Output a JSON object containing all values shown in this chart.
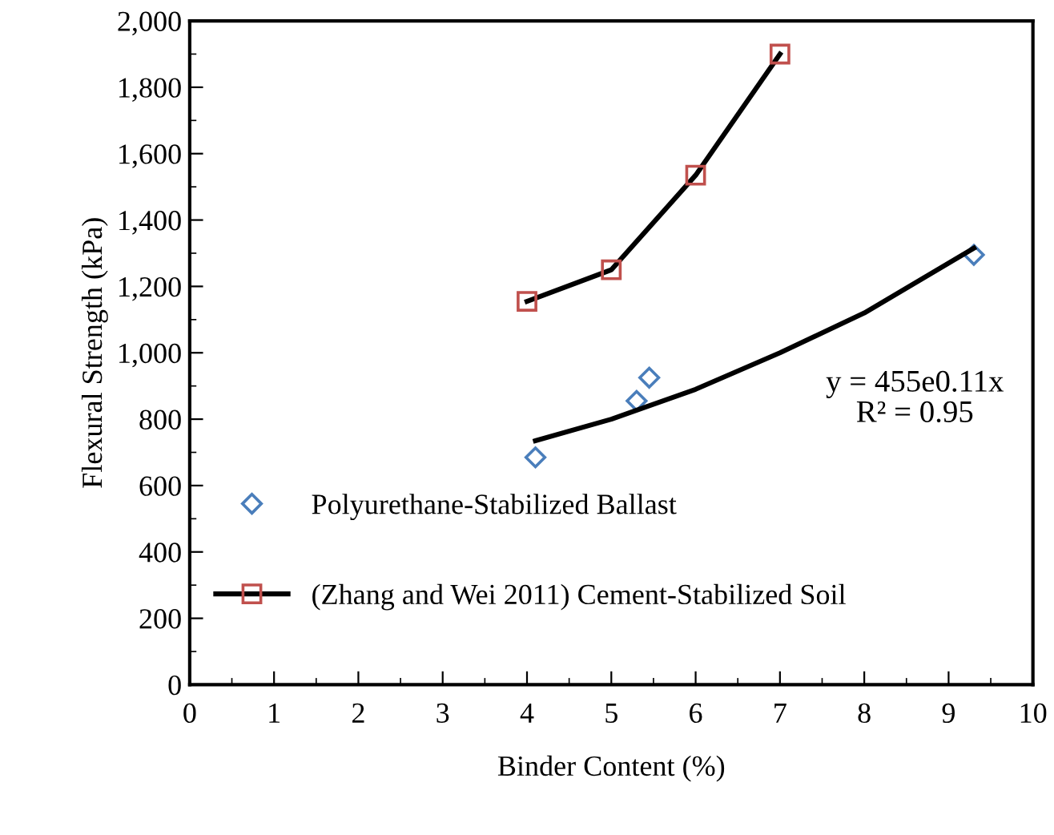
{
  "chart_data": {
    "type": "scatter",
    "xlabel": "Binder Content (%)",
    "ylabel": "Flexural Strength (kPa)",
    "xlim": [
      0,
      10
    ],
    "xticks": [
      0,
      1,
      2,
      3,
      4,
      5,
      6,
      7,
      8,
      9,
      10
    ],
    "ylim": [
      0,
      2000
    ],
    "yticks": [
      {
        "value": 0,
        "label": "0"
      },
      {
        "value": 200,
        "label": "200"
      },
      {
        "value": 400,
        "label": "400"
      },
      {
        "value": 600,
        "label": "600"
      },
      {
        "value": 800,
        "label": "800"
      },
      {
        "value": 1000,
        "label": "1,000"
      },
      {
        "value": 1200,
        "label": "1,200"
      },
      {
        "value": 1400,
        "label": "1,400"
      },
      {
        "value": 1600,
        "label": "1,600"
      },
      {
        "value": 1800,
        "label": "1,800"
      },
      {
        "value": 2000,
        "label": "2,000"
      }
    ],
    "grid": false,
    "legend": "left",
    "annotations": [
      "y = 455e0.11x\nR² = 0.95"
    ],
    "series": [
      {
        "name": "Polyurethane-Stabilized Ballast",
        "marker": "diamond",
        "color": "#4a7ebb",
        "x": [
          4.1,
          5.3,
          5.45,
          9.3
        ],
        "values": [
          685,
          855,
          925,
          1295
        ]
      },
      {
        "type": "line",
        "marker": "none",
        "color": "#000000",
        "x": [
          4.1,
          5,
          6,
          7,
          8,
          9.3
        ],
        "values": [
          735,
          800,
          890,
          1000,
          1120,
          1315
        ]
      },
      {
        "type": "line",
        "marker": "none",
        "color": "#000000",
        "x": [
          4,
          5,
          6,
          7
        ],
        "values": [
          1155,
          1250,
          1535,
          1900
        ]
      },
      {
        "name": "(Zhang and Wei 2011) Cement-Stabilized Soil",
        "type": "scatter",
        "marker": "square",
        "color": "#c0504d",
        "x": [
          4,
          5,
          6,
          7
        ],
        "values": [
          1155,
          1250,
          1535,
          1900
        ]
      }
    ]
  }
}
